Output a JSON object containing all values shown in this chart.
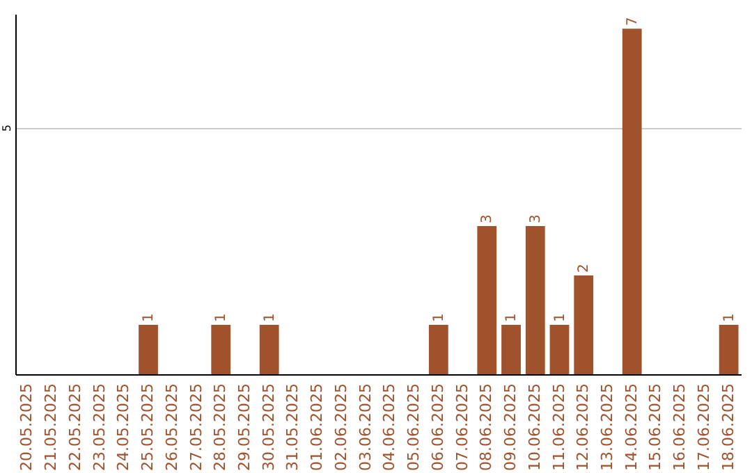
{
  "chart_data": {
    "type": "bar",
    "categories": [
      "20.05.2025",
      "21.05.2025",
      "22.05.2025",
      "23.05.2025",
      "24.05.2025",
      "25.05.2025",
      "26.05.2025",
      "27.05.2025",
      "28.05.2025",
      "29.05.2025",
      "30.05.2025",
      "31.05.2025",
      "01.06.2025",
      "02.06.2025",
      "03.06.2025",
      "04.06.2025",
      "05.06.2025",
      "06.06.2025",
      "07.06.2025",
      "08.06.2025",
      "09.06.2025",
      "10.06.2025",
      "11.06.2025",
      "12.06.2025",
      "13.06.2025",
      "14.06.2025",
      "15.06.2025",
      "16.06.2025",
      "17.06.2025",
      "18.06.2025"
    ],
    "values": [
      0,
      0,
      0,
      0,
      0,
      1,
      0,
      0,
      1,
      0,
      1,
      0,
      0,
      0,
      0,
      0,
      0,
      1,
      0,
      3,
      1,
      3,
      1,
      2,
      0,
      7,
      0,
      0,
      0,
      1
    ],
    "value_labels": [
      null,
      null,
      null,
      null,
      null,
      "1",
      null,
      null,
      "1",
      null,
      "1",
      null,
      null,
      null,
      null,
      null,
      null,
      "1",
      null,
      "3",
      "1",
      "3",
      "1",
      "2",
      null,
      "7",
      null,
      null,
      null,
      "1"
    ],
    "color": "#a0522d",
    "ylim": [
      0,
      7.3
    ],
    "yticks": [
      5
    ],
    "grid": "y"
  }
}
